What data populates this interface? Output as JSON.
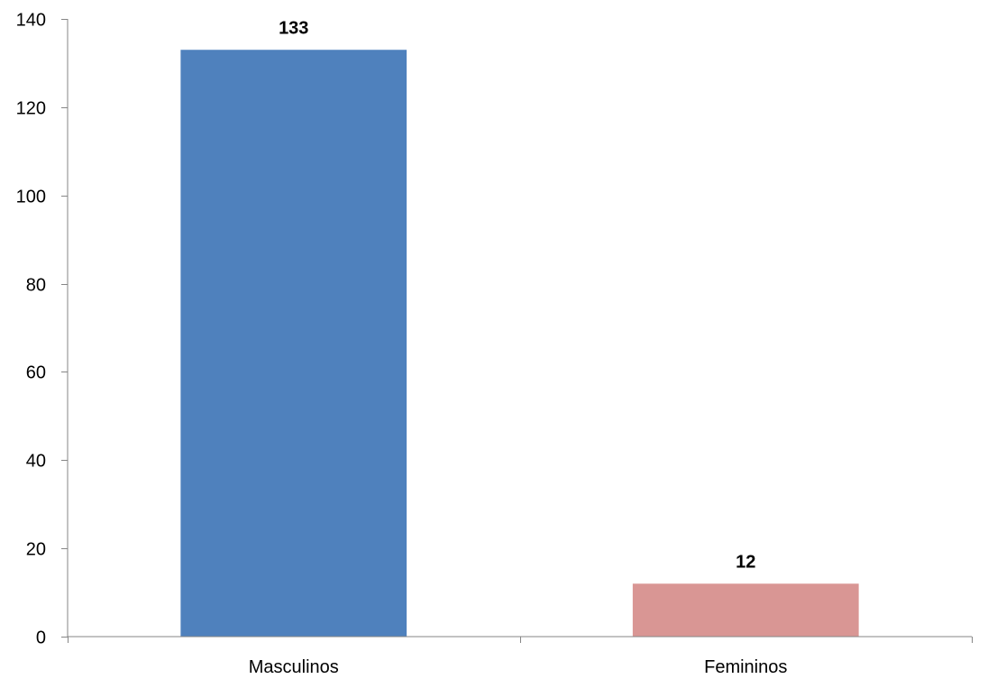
{
  "chart_data": {
    "type": "bar",
    "title": "",
    "xlabel": "",
    "ylabel": "",
    "categories": [
      "Masculinos",
      "Femininos"
    ],
    "values": [
      133,
      12
    ],
    "data_labels": [
      "133",
      "12"
    ],
    "colors": [
      "#4f81bd",
      "#d99694"
    ],
    "ylim": [
      0,
      140
    ],
    "yticks": [
      0,
      20,
      40,
      60,
      80,
      100,
      120,
      140
    ],
    "ytick_labels": [
      "0",
      "20",
      "40",
      "60",
      "80",
      "100",
      "120",
      "140"
    ],
    "grid": false,
    "legend": "none"
  }
}
